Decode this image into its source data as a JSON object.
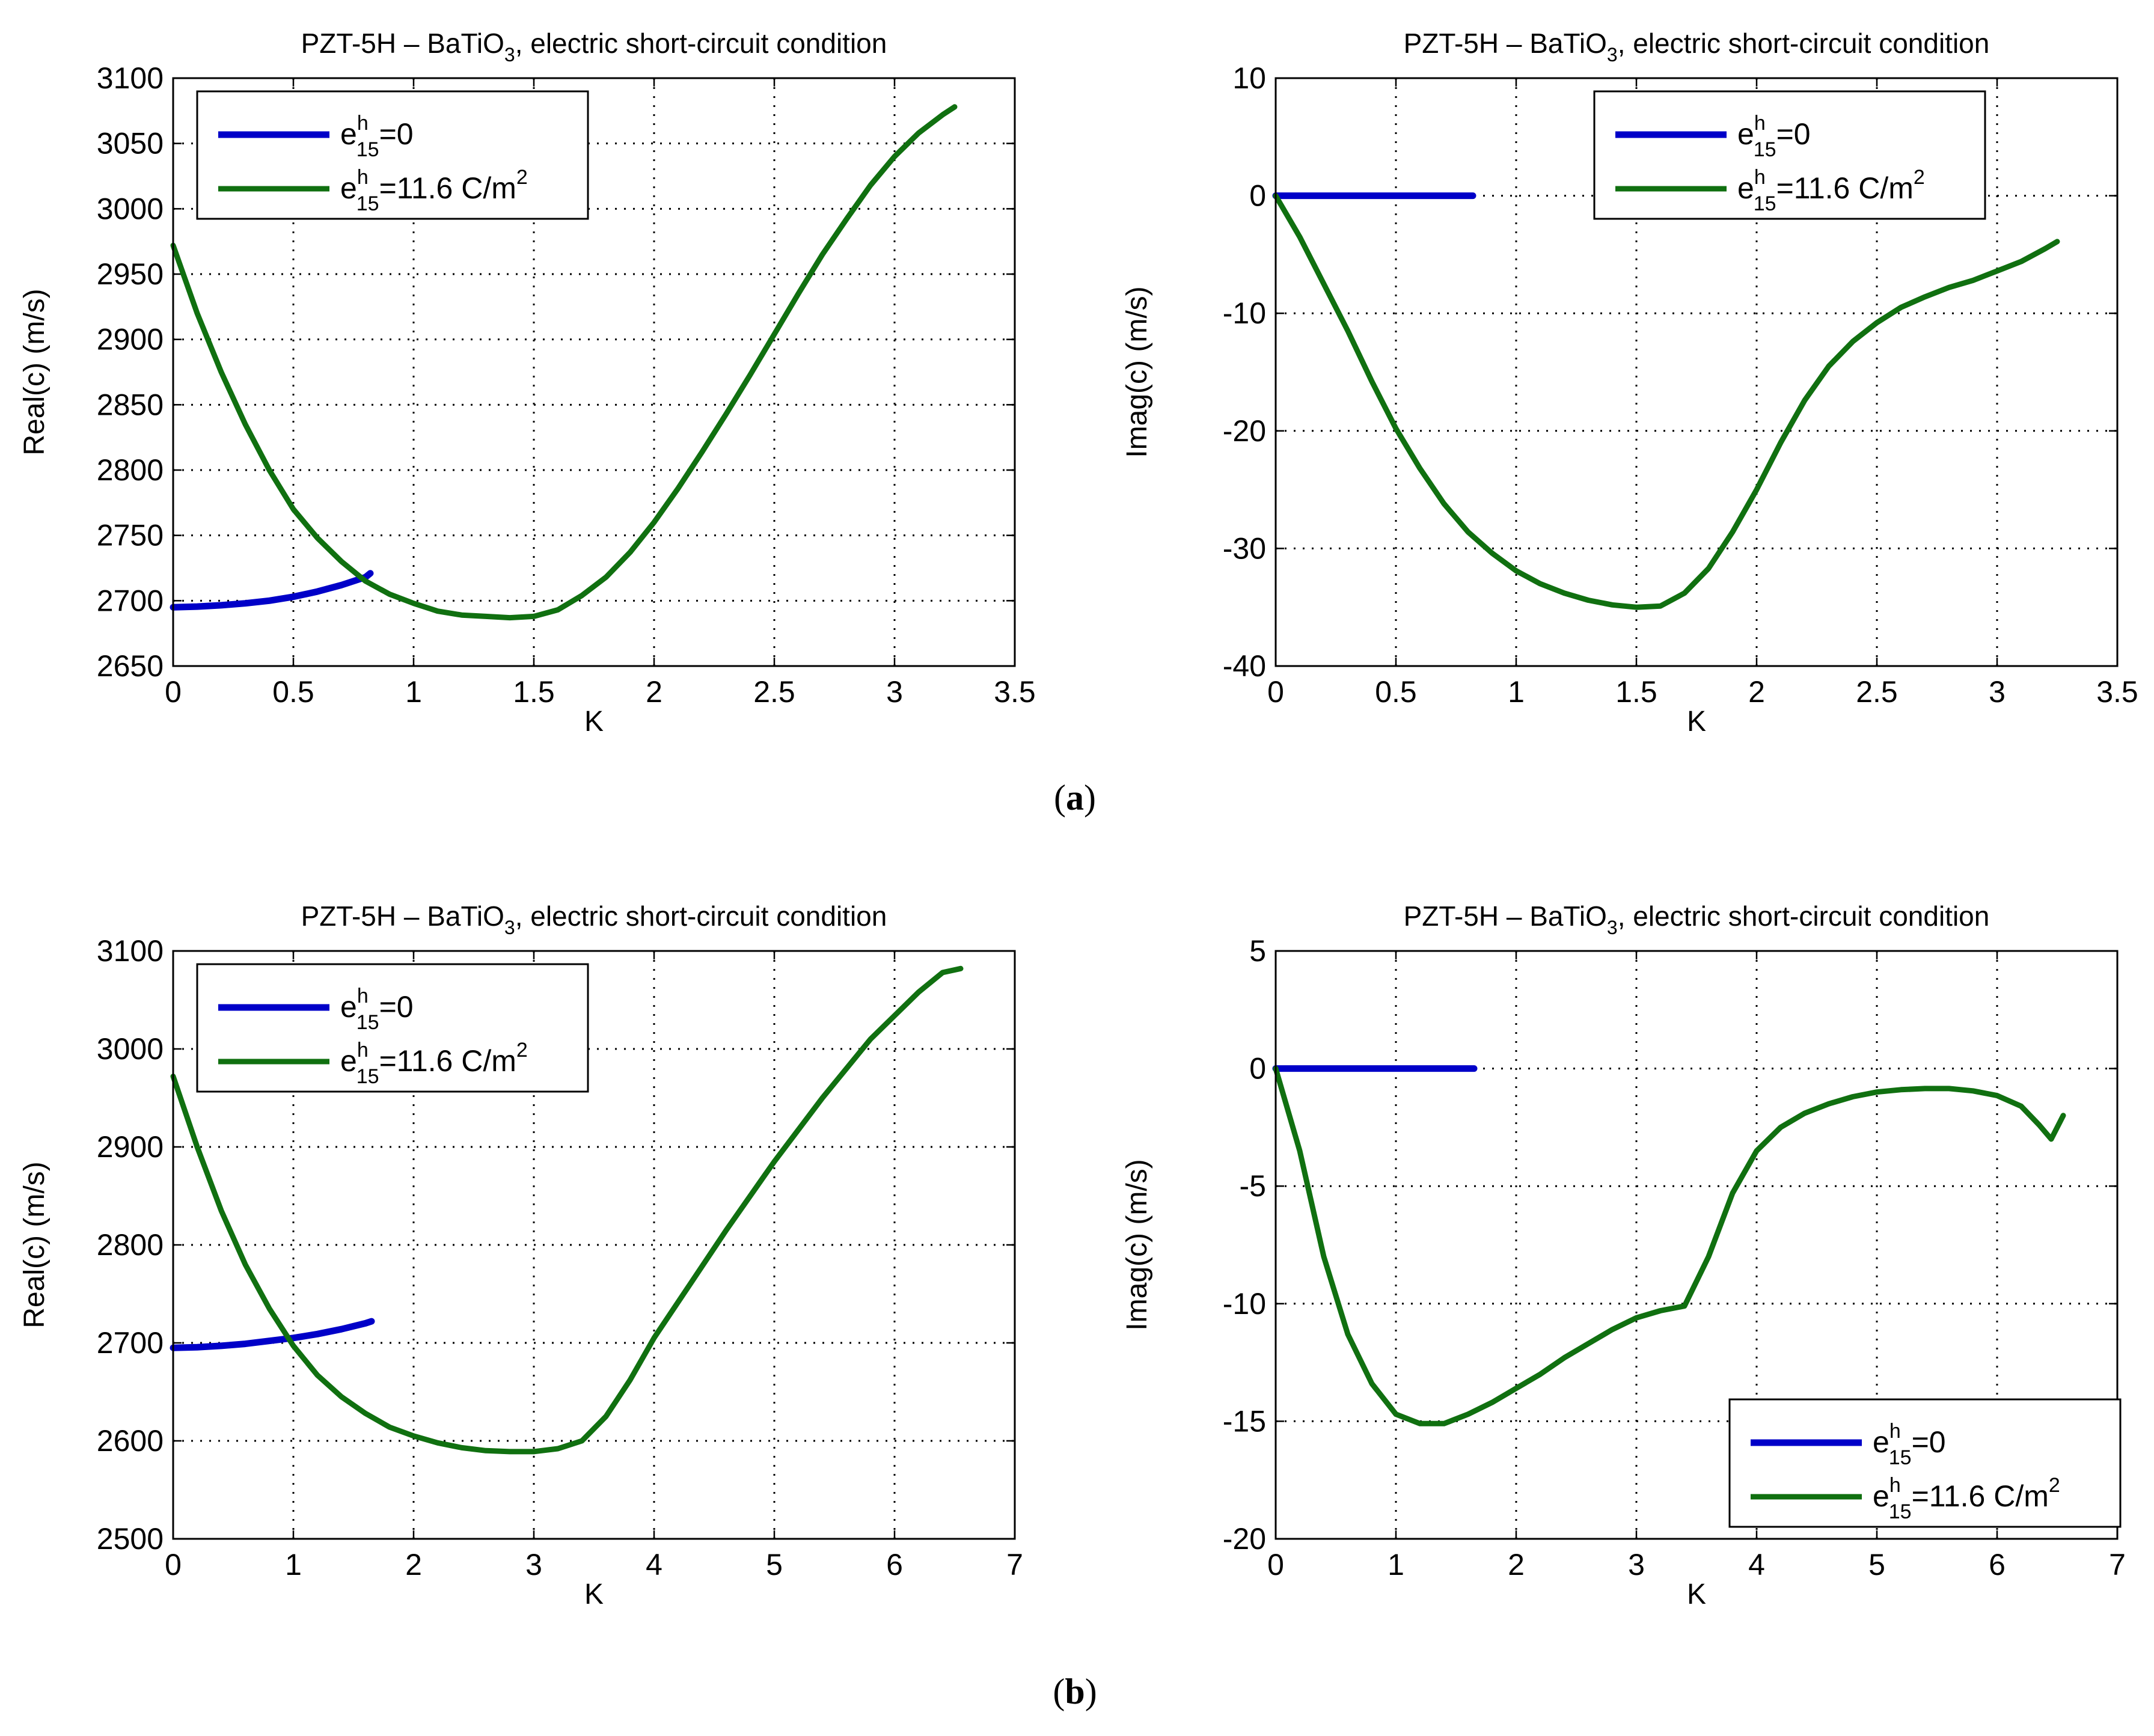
{
  "figure": {
    "panel_labels": [
      {
        "open": "(",
        "letter": "a",
        "close": ")"
      },
      {
        "open": "(",
        "letter": "b",
        "close": ")"
      }
    ]
  },
  "colors": {
    "series_zero": "#0000c8",
    "series_piezo": "#107010",
    "grid": "#000000",
    "frame": "#000000",
    "background": "#ffffff"
  },
  "chart_data": [
    {
      "id": "a-real",
      "type": "line",
      "title": {
        "main": "PZT-5H – BaTiO",
        "sub": "3",
        "tail": ", electric short-circuit condition"
      },
      "xlabel": "K",
      "ylabel": "Real(c) (m/s)",
      "xlim": [
        0,
        3.5
      ],
      "ylim": [
        2650,
        3100
      ],
      "xticks": [
        0,
        0.5,
        1,
        1.5,
        2,
        2.5,
        3,
        3.5
      ],
      "xtick_labels": [
        "0",
        "0.5",
        "1",
        "1.5",
        "2",
        "2.5",
        "3",
        "3.5"
      ],
      "yticks": [
        2650,
        2700,
        2750,
        2800,
        2850,
        2900,
        2950,
        3000,
        3050,
        3100
      ],
      "ytick_labels": [
        "2650",
        "2700",
        "2750",
        "2800",
        "2850",
        "2900",
        "2950",
        "3000",
        "3050",
        "3100"
      ],
      "grid": true,
      "legend": {
        "placement": "top-left",
        "entries": [
          {
            "base": "e",
            "sup": "h",
            "sub": "15",
            "rest": "=0",
            "unit_base": "",
            "unit_sup": ""
          },
          {
            "base": "e",
            "sup": "h",
            "sub": "15",
            "rest": "=11.6 C/m",
            "unit_base": "",
            "unit_sup": "2"
          }
        ]
      },
      "series": [
        {
          "name": "e15h=0",
          "color_key": "series_zero",
          "x": [
            0,
            0.1,
            0.2,
            0.3,
            0.4,
            0.5,
            0.6,
            0.7,
            0.8,
            0.82
          ],
          "y": [
            2695,
            2695.5,
            2696.5,
            2698,
            2700,
            2703,
            2707,
            2712,
            2718,
            2721
          ]
        },
        {
          "name": "e15h=11.6 C/m2",
          "color_key": "series_piezo",
          "x": [
            0,
            0.1,
            0.2,
            0.3,
            0.4,
            0.5,
            0.6,
            0.7,
            0.8,
            0.9,
            1.0,
            1.1,
            1.2,
            1.3,
            1.4,
            1.5,
            1.6,
            1.7,
            1.8,
            1.9,
            2.0,
            2.1,
            2.2,
            2.3,
            2.4,
            2.5,
            2.6,
            2.7,
            2.8,
            2.9,
            3.0,
            3.1,
            3.2,
            3.25
          ],
          "y": [
            2972,
            2920,
            2875,
            2835,
            2800,
            2770,
            2748,
            2730,
            2715,
            2705,
            2698,
            2692,
            2689,
            2688,
            2687,
            2688,
            2693,
            2704,
            2718,
            2737,
            2760,
            2786,
            2814,
            2843,
            2873,
            2904,
            2935,
            2965,
            2992,
            3018,
            3040,
            3058,
            3072,
            3078
          ]
        }
      ]
    },
    {
      "id": "a-imag",
      "type": "line",
      "title": {
        "main": "PZT-5H – BaTiO",
        "sub": "3",
        "tail": ", electric short-circuit condition"
      },
      "xlabel": "K",
      "ylabel": "Imag(c) (m/s)",
      "xlim": [
        0,
        3.5
      ],
      "ylim": [
        -40,
        10
      ],
      "xticks": [
        0,
        0.5,
        1,
        1.5,
        2,
        2.5,
        3,
        3.5
      ],
      "xtick_labels": [
        "0",
        "0.5",
        "1",
        "1.5",
        "2",
        "2.5",
        "3",
        "3.5"
      ],
      "yticks": [
        -40,
        -30,
        -20,
        -10,
        0,
        10
      ],
      "ytick_labels": [
        "-40",
        "-30",
        "-20",
        "-10",
        "0",
        "10"
      ],
      "grid": true,
      "legend": {
        "placement": "top-right",
        "entries": [
          {
            "base": "e",
            "sup": "h",
            "sub": "15",
            "rest": "=0",
            "unit_base": "",
            "unit_sup": ""
          },
          {
            "base": "e",
            "sup": "h",
            "sub": "15",
            "rest": "=11.6 C/m",
            "unit_base": "",
            "unit_sup": "2"
          }
        ]
      },
      "series": [
        {
          "name": "e15h=0",
          "color_key": "series_zero",
          "x": [
            0,
            0.82
          ],
          "y": [
            0,
            0
          ]
        },
        {
          "name": "e15h=11.6 C/m2",
          "color_key": "series_piezo",
          "x": [
            0,
            0.1,
            0.2,
            0.3,
            0.4,
            0.5,
            0.6,
            0.7,
            0.8,
            0.9,
            1.0,
            1.1,
            1.2,
            1.3,
            1.4,
            1.5,
            1.6,
            1.7,
            1.8,
            1.9,
            2.0,
            2.1,
            2.2,
            2.3,
            2.4,
            2.5,
            2.6,
            2.7,
            2.8,
            2.9,
            3.0,
            3.1,
            3.2,
            3.25
          ],
          "y": [
            0,
            -3.5,
            -7.5,
            -11.5,
            -15.8,
            -19.8,
            -23.2,
            -26.2,
            -28.6,
            -30.4,
            -31.9,
            -33.0,
            -33.8,
            -34.4,
            -34.8,
            -35.0,
            -34.9,
            -33.8,
            -31.7,
            -28.6,
            -25.0,
            -21.0,
            -17.4,
            -14.5,
            -12.4,
            -10.8,
            -9.5,
            -8.6,
            -7.8,
            -7.2,
            -6.4,
            -5.6,
            -4.5,
            -3.9
          ]
        }
      ]
    },
    {
      "id": "b-real",
      "type": "line",
      "title": {
        "main": "PZT-5H – BaTiO",
        "sub": "3",
        "tail": ", electric short-circuit condition"
      },
      "xlabel": "K",
      "ylabel": "Real(c) (m/s)",
      "xlim": [
        0,
        7
      ],
      "ylim": [
        2500,
        3100
      ],
      "xticks": [
        0,
        1,
        2,
        3,
        4,
        5,
        6,
        7
      ],
      "xtick_labels": [
        "0",
        "1",
        "2",
        "3",
        "4",
        "5",
        "6",
        "7"
      ],
      "yticks": [
        2500,
        2600,
        2700,
        2800,
        2900,
        3000,
        3100
      ],
      "ytick_labels": [
        "2500",
        "2600",
        "2700",
        "2800",
        "2900",
        "3000",
        "3100"
      ],
      "grid": true,
      "legend": {
        "placement": "top-left",
        "entries": [
          {
            "base": "e",
            "sup": "h",
            "sub": "15",
            "rest": "=0",
            "unit_base": "",
            "unit_sup": ""
          },
          {
            "base": "e",
            "sup": "h",
            "sub": "15",
            "rest": "=11.6 C/m",
            "unit_base": "",
            "unit_sup": "2"
          }
        ]
      },
      "series": [
        {
          "name": "e15h=0",
          "color_key": "series_zero",
          "x": [
            0,
            0.2,
            0.4,
            0.6,
            0.8,
            1.0,
            1.2,
            1.4,
            1.6,
            1.65
          ],
          "y": [
            2695,
            2695.5,
            2697,
            2699,
            2702,
            2705,
            2709,
            2714,
            2720,
            2722
          ]
        },
        {
          "name": "e15h=11.6 C/m2",
          "color_key": "series_piezo",
          "x": [
            0,
            0.2,
            0.4,
            0.6,
            0.8,
            1.0,
            1.2,
            1.4,
            1.6,
            1.8,
            2.0,
            2.2,
            2.4,
            2.6,
            2.8,
            3.0,
            3.2,
            3.4,
            3.6,
            3.8,
            4.0,
            4.3,
            4.6,
            5.0,
            5.4,
            5.8,
            6.2,
            6.4,
            6.55
          ],
          "y": [
            2972,
            2900,
            2835,
            2780,
            2735,
            2697,
            2667,
            2645,
            2628,
            2614,
            2605,
            2598,
            2593,
            2590,
            2589,
            2589,
            2592,
            2600,
            2625,
            2662,
            2705,
            2760,
            2815,
            2885,
            2950,
            3010,
            3058,
            3078,
            3082
          ]
        }
      ]
    },
    {
      "id": "b-imag",
      "type": "line",
      "title": {
        "main": "PZT-5H – BaTiO",
        "sub": "3",
        "tail": ", electric short-circuit condition"
      },
      "xlabel": "K",
      "ylabel": "Imag(c) (m/s)",
      "xlim": [
        0,
        7
      ],
      "ylim": [
        -20,
        5
      ],
      "xticks": [
        0,
        1,
        2,
        3,
        4,
        5,
        6,
        7
      ],
      "xtick_labels": [
        "0",
        "1",
        "2",
        "3",
        "4",
        "5",
        "6",
        "7"
      ],
      "yticks": [
        -20,
        -15,
        -10,
        -5,
        0,
        5
      ],
      "ytick_labels": [
        "-20",
        "-15",
        "-10",
        "-5",
        "0",
        "5"
      ],
      "grid": true,
      "legend": {
        "placement": "bottom-right",
        "entries": [
          {
            "base": "e",
            "sup": "h",
            "sub": "15",
            "rest": "=0",
            "unit_base": "",
            "unit_sup": ""
          },
          {
            "base": "e",
            "sup": "h",
            "sub": "15",
            "rest": "=11.6 C/m",
            "unit_base": "",
            "unit_sup": "2"
          }
        ]
      },
      "series": [
        {
          "name": "e15h=0",
          "color_key": "series_zero",
          "x": [
            0,
            1.65
          ],
          "y": [
            0,
            0
          ]
        },
        {
          "name": "e15h=11.6 C/m2",
          "color_key": "series_piezo",
          "x": [
            0,
            0.2,
            0.4,
            0.6,
            0.8,
            1.0,
            1.2,
            1.4,
            1.6,
            1.8,
            2.0,
            2.2,
            2.4,
            2.6,
            2.8,
            3.0,
            3.2,
            3.4,
            3.6,
            3.8,
            4.0,
            4.2,
            4.4,
            4.6,
            4.8,
            5.0,
            5.2,
            5.4,
            5.6,
            5.8,
            6.0,
            6.2,
            6.35,
            6.45,
            6.55
          ],
          "y": [
            0,
            -3.5,
            -8.0,
            -11.3,
            -13.4,
            -14.7,
            -15.1,
            -15.1,
            -14.7,
            -14.2,
            -13.6,
            -13.0,
            -12.3,
            -11.7,
            -11.1,
            -10.6,
            -10.3,
            -10.1,
            -8.0,
            -5.3,
            -3.5,
            -2.5,
            -1.9,
            -1.5,
            -1.2,
            -1.0,
            -0.9,
            -0.85,
            -0.85,
            -0.95,
            -1.15,
            -1.6,
            -2.4,
            -3.0,
            -2.0
          ]
        }
      ]
    }
  ]
}
